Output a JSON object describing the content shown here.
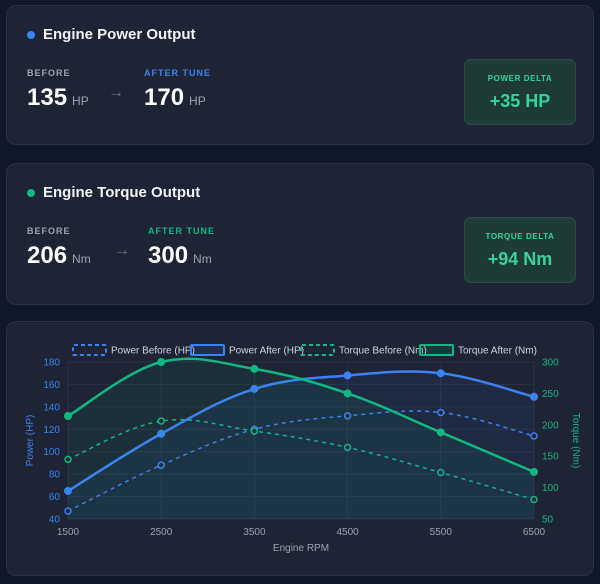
{
  "power": {
    "title": "Engine Power Output",
    "before_label": "BEFORE",
    "before_value": "135",
    "unit": "HP",
    "after_label": "AFTER TUNE",
    "after_value": "170",
    "delta_label": "POWER DELTA",
    "delta_value": "+35 HP",
    "arrow": "→"
  },
  "torque": {
    "title": "Engine Torque Output",
    "before_label": "BEFORE",
    "before_value": "206",
    "unit": "Nm",
    "after_label": "AFTER TUNE",
    "after_value": "300",
    "delta_label": "TORQUE DELTA",
    "delta_value": "+94 Nm",
    "arrow": "→"
  },
  "colors": {
    "power_dot": "#3b82f6",
    "torque_dot": "#10b981",
    "power_after_label": "#3b82f6",
    "torque_after_label": "#10b981"
  },
  "chart_data": {
    "type": "line",
    "x": [
      1500,
      2500,
      3500,
      4500,
      5500,
      6500
    ],
    "xlabel": "Engine RPM",
    "ylabel_left": "Power (HP)",
    "ylabel_right": "Torque (Nm)",
    "ylim_left": [
      40,
      180
    ],
    "yticks_left": [
      40,
      60,
      80,
      100,
      120,
      140,
      160,
      180
    ],
    "ylim_right": [
      50,
      300
    ],
    "yticks_right": [
      50,
      100,
      150,
      200,
      250,
      300
    ],
    "grid": true,
    "legend": "top",
    "series": [
      {
        "name": "Power Before (HP)",
        "axis": "left",
        "style": "dashed",
        "color": "#3b82f6",
        "values": [
          47,
          88,
          120,
          132,
          135,
          114
        ]
      },
      {
        "name": "Power After (HP)",
        "axis": "left",
        "style": "solid",
        "color": "#3b82f6",
        "values": [
          65,
          116,
          156,
          168,
          170,
          149
        ]
      },
      {
        "name": "Torque Before (Nm)",
        "axis": "right",
        "style": "dashed",
        "color": "#10b981",
        "values": [
          145,
          206,
          190,
          164,
          124,
          81
        ]
      },
      {
        "name": "Torque After (Nm)",
        "axis": "right",
        "style": "solid",
        "color": "#10b981",
        "values": [
          214,
          300,
          289,
          250,
          188,
          125
        ]
      }
    ]
  }
}
